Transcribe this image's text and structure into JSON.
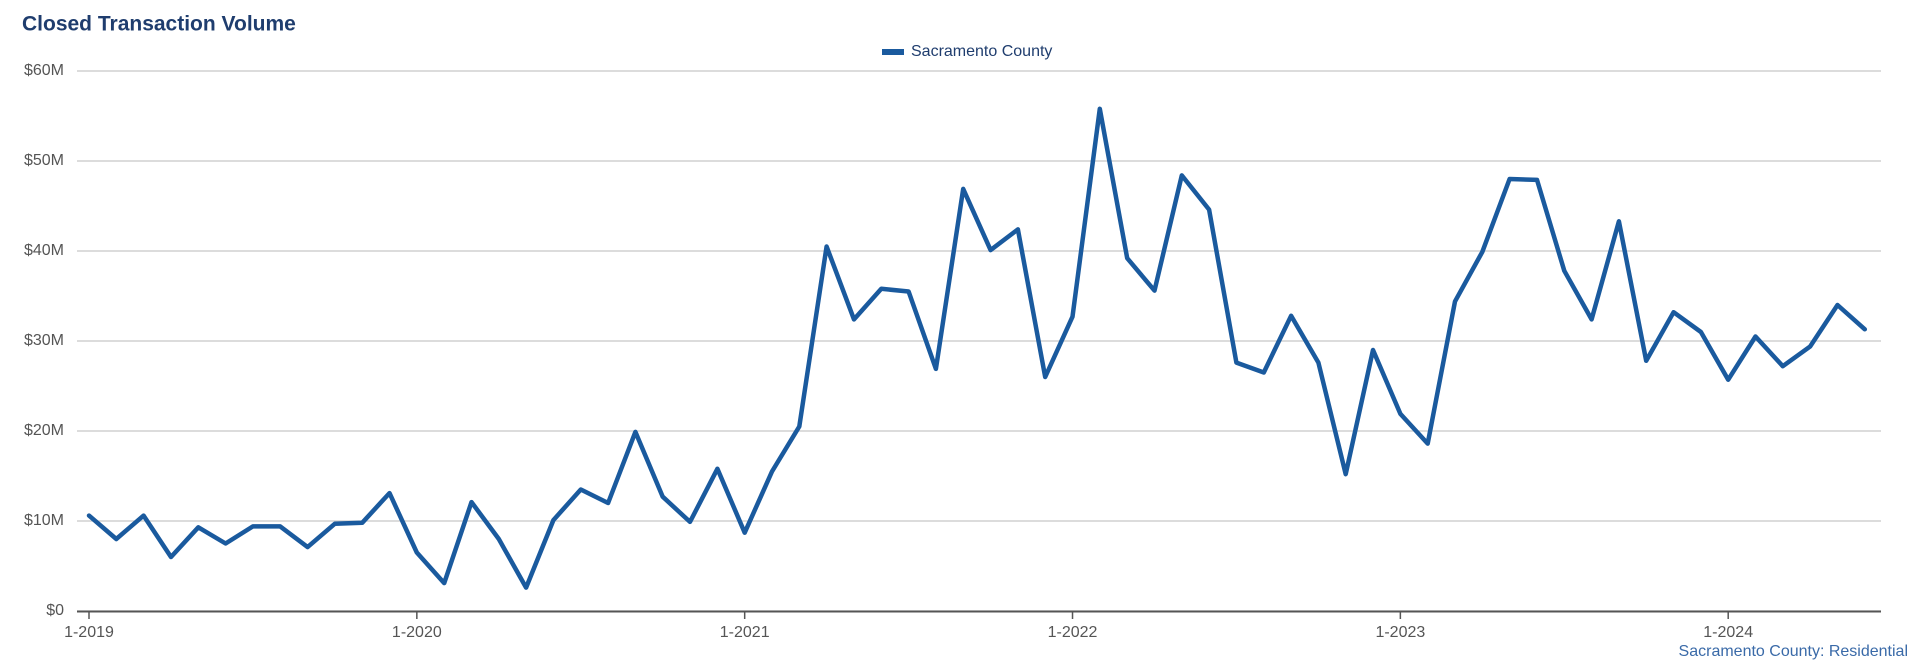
{
  "chart_data": {
    "type": "line",
    "title": "Closed Transaction Volume",
    "footer": "Sacramento County: Residential",
    "categories": [
      "1-2019",
      null,
      null,
      null,
      null,
      null,
      null,
      null,
      null,
      null,
      null,
      null,
      "1-2020",
      null,
      null,
      null,
      null,
      null,
      null,
      null,
      null,
      null,
      null,
      null,
      "1-2021",
      null,
      null,
      null,
      null,
      null,
      null,
      null,
      null,
      null,
      null,
      null,
      "1-2022",
      null,
      null,
      null,
      null,
      null,
      null,
      null,
      null,
      null,
      null,
      null,
      "1-2023",
      null,
      null,
      null,
      null,
      null,
      null,
      null,
      null,
      null,
      null,
      null,
      "1-2024",
      null,
      null,
      null,
      null,
      null
    ],
    "series": [
      {
        "name": "Sacramento County",
        "color": "#1a5a9e",
        "values": [
          10600000,
          8000000,
          10600000,
          6000000,
          9300000,
          7500000,
          9400000,
          9400000,
          7100000,
          9700000,
          9800000,
          13100000,
          6500000,
          3100000,
          12100000,
          8000000,
          2600000,
          10100000,
          13500000,
          12000000,
          19900000,
          12700000,
          9900000,
          15800000,
          8700000,
          15500000,
          20500000,
          40500000,
          32400000,
          35800000,
          35500000,
          26900000,
          46900000,
          40100000,
          42400000,
          26000000,
          32700000,
          55800000,
          39200000,
          35600000,
          48400000,
          44600000,
          27600000,
          26500000,
          32800000,
          27600000,
          15200000,
          29000000,
          21900000,
          18600000,
          34400000,
          39900000,
          48000000,
          47900000,
          37800000,
          32400000,
          43300000,
          27800000,
          33200000,
          31000000,
          25700000,
          30500000,
          27200000,
          29400000,
          34000000,
          31300000
        ]
      }
    ],
    "ylim": [
      0,
      60000000
    ],
    "yticks": [
      {
        "value": 0,
        "label": "$0"
      },
      {
        "value": 10000000,
        "label": "$10M"
      },
      {
        "value": 20000000,
        "label": "$20M"
      },
      {
        "value": 30000000,
        "label": "$30M"
      },
      {
        "value": 40000000,
        "label": "$40M"
      },
      {
        "value": 50000000,
        "label": "$50M"
      },
      {
        "value": 60000000,
        "label": "$60M"
      }
    ],
    "grid": true,
    "legend": "top"
  }
}
